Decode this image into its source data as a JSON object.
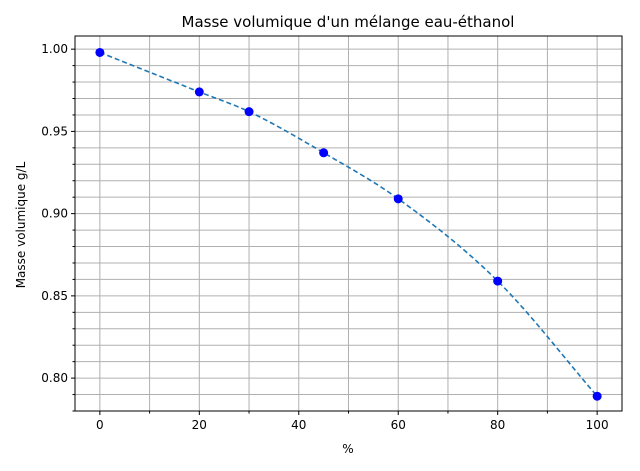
{
  "chart_data": {
    "type": "line",
    "title": "Masse volumique d'un mélange eau-éthanol",
    "xlabel": "%",
    "ylabel": "Masse volumique g/L",
    "xlim": [
      -5,
      105
    ],
    "ylim": [
      0.78,
      1.008
    ],
    "xticks": [
      0,
      20,
      40,
      60,
      80,
      100
    ],
    "xtick_labels": [
      "0",
      "20",
      "40",
      "60",
      "80",
      "100"
    ],
    "xminor_ticks": [
      10,
      30,
      50,
      70,
      90
    ],
    "yticks": [
      0.8,
      0.85,
      0.9,
      0.95,
      1.0
    ],
    "ytick_labels": [
      "0.80",
      "0.85",
      "0.90",
      "0.95",
      "1.00"
    ],
    "yminor_step": 0.01,
    "grid": true,
    "series": [
      {
        "style": "markers",
        "marker_color": "#0000ff",
        "x": [
          0,
          20,
          30,
          45,
          60,
          80,
          100
        ],
        "y": [
          0.998,
          0.974,
          0.962,
          0.937,
          0.909,
          0.859,
          0.789
        ]
      },
      {
        "style": "dashed-fit",
        "line_color": "#1f77b4",
        "x": [
          0,
          20,
          30,
          45,
          60,
          80,
          100
        ],
        "y": [
          0.998,
          0.974,
          0.962,
          0.937,
          0.909,
          0.859,
          0.789
        ]
      }
    ]
  }
}
